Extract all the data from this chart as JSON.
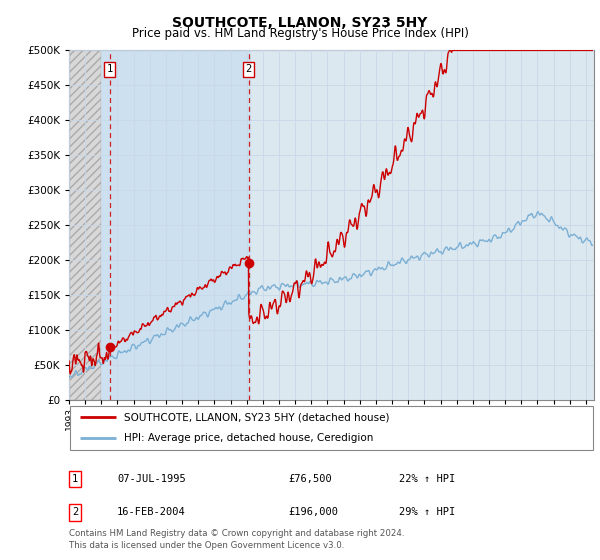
{
  "title": "SOUTHCOTE, LLANON, SY23 5HY",
  "subtitle": "Price paid vs. HM Land Registry's House Price Index (HPI)",
  "ytick_values": [
    0,
    50000,
    100000,
    150000,
    200000,
    250000,
    300000,
    350000,
    400000,
    450000,
    500000
  ],
  "ylim": [
    0,
    500000
  ],
  "xmin_year": 1993,
  "xmax_year": 2025.5,
  "hatch_region_end": 1995.0,
  "light_blue_region_start": 1995.0,
  "light_blue_region_end": 2004.25,
  "sale1": {
    "date_num": 1995.52,
    "price": 76500,
    "label": "1",
    "pct": "22%",
    "date_str": "07-JUL-1995"
  },
  "sale2": {
    "date_num": 2004.12,
    "price": 196000,
    "label": "2",
    "pct": "29%",
    "date_str": "16-FEB-2004"
  },
  "legend_line1": "SOUTHCOTE, LLANON, SY23 5HY (detached house)",
  "legend_line2": "HPI: Average price, detached house, Ceredigion",
  "footer": "Contains HM Land Registry data © Crown copyright and database right 2024.\nThis data is licensed under the Open Government Licence v3.0.",
  "line_color_red": "#cc0000",
  "line_color_blue": "#7bafd4",
  "marker_color_red": "#cc0000",
  "grid_color": "#c8d8e8",
  "bg_color": "#ffffff",
  "plot_bg": "#dce8f0",
  "hatch_bg": "#e8e8e8",
  "dashed_line_color": "#cc0000",
  "xtick_years": [
    1993,
    1994,
    1995,
    1996,
    1997,
    1998,
    1999,
    2000,
    2001,
    2002,
    2003,
    2004,
    2005,
    2006,
    2007,
    2008,
    2009,
    2010,
    2011,
    2012,
    2013,
    2014,
    2015,
    2016,
    2017,
    2018,
    2019,
    2020,
    2021,
    2022,
    2023,
    2024,
    2025
  ]
}
